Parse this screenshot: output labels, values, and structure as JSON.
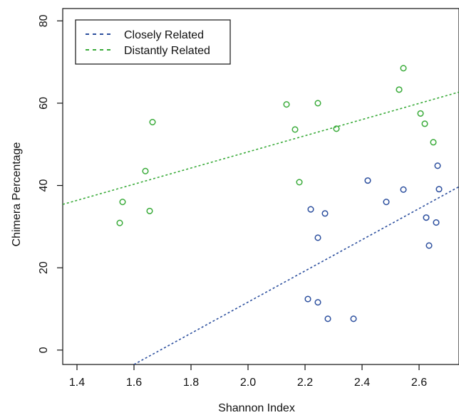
{
  "chart_data": {
    "type": "scatter",
    "xlabel": "Shannon Index",
    "ylabel": "Chimera Percentage",
    "xlim": [
      1.35,
      2.74
    ],
    "ylim": [
      -3.5,
      83
    ],
    "x_ticks": [
      {
        "value": 1.4,
        "label": "1.4"
      },
      {
        "value": 1.6,
        "label": "1.6"
      },
      {
        "value": 1.8,
        "label": "1.8"
      },
      {
        "value": 2.0,
        "label": "2.0"
      },
      {
        "value": 2.2,
        "label": "2.2"
      },
      {
        "value": 2.4,
        "label": "2.4"
      },
      {
        "value": 2.6,
        "label": "2.6"
      }
    ],
    "y_ticks": [
      {
        "value": 0,
        "label": "0"
      },
      {
        "value": 20,
        "label": "20"
      },
      {
        "value": 40,
        "label": "40"
      },
      {
        "value": 60,
        "label": "60"
      },
      {
        "value": 80,
        "label": "80"
      }
    ],
    "grid": false,
    "legend_position": "top-left",
    "series": [
      {
        "name": "Closely Related",
        "color": "#2c4f9e",
        "points": [
          [
            2.21,
            12.4
          ],
          [
            2.245,
            11.6
          ],
          [
            2.28,
            7.6
          ],
          [
            2.37,
            7.6
          ],
          [
            2.22,
            34.2
          ],
          [
            2.27,
            33.2
          ],
          [
            2.245,
            27.3
          ],
          [
            2.42,
            41.2
          ],
          [
            2.485,
            36.0
          ],
          [
            2.545,
            39.0
          ],
          [
            2.625,
            32.2
          ],
          [
            2.635,
            25.4
          ],
          [
            2.66,
            31.0
          ],
          [
            2.665,
            44.8
          ],
          [
            2.67,
            39.1
          ]
        ],
        "trend": [
          [
            1.6,
            -3.5
          ],
          [
            2.74,
            39.7
          ]
        ]
      },
      {
        "name": "Distantly Related",
        "color": "#3aab3a",
        "points": [
          [
            1.55,
            30.9
          ],
          [
            1.56,
            36.0
          ],
          [
            1.64,
            43.5
          ],
          [
            1.655,
            33.8
          ],
          [
            1.665,
            55.4
          ],
          [
            2.135,
            59.7
          ],
          [
            2.165,
            53.6
          ],
          [
            2.18,
            40.8
          ],
          [
            2.245,
            60.0
          ],
          [
            2.31,
            53.8
          ],
          [
            2.53,
            63.3
          ],
          [
            2.545,
            68.5
          ],
          [
            2.605,
            57.5
          ],
          [
            2.62,
            55.0
          ],
          [
            2.65,
            50.5
          ]
        ],
        "trend": [
          [
            1.35,
            35.4
          ],
          [
            2.74,
            62.7
          ]
        ]
      }
    ]
  }
}
